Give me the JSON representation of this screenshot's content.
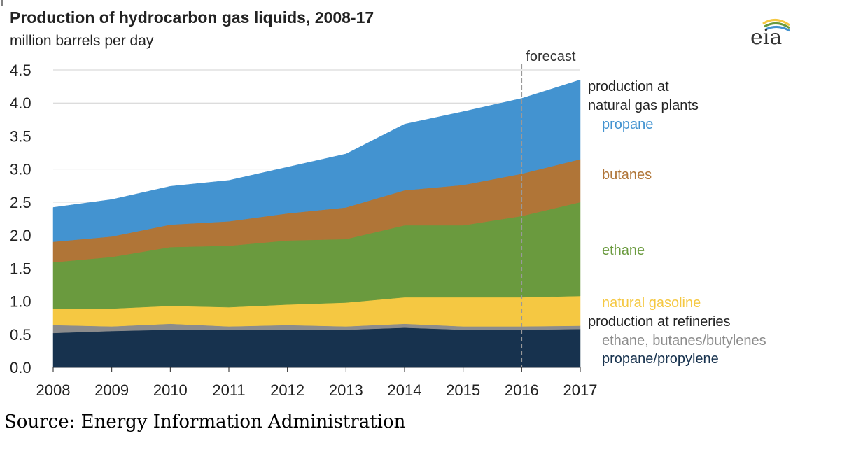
{
  "chart_data": {
    "type": "area",
    "title": "Production of hydrocarbon gas liquids, 2008-17",
    "ylabel": "million barrels per day",
    "x": [
      2008,
      2009,
      2010,
      2011,
      2012,
      2013,
      2014,
      2015,
      2016,
      2017
    ],
    "xticks": [
      "2008",
      "2009",
      "2010",
      "2011",
      "2012",
      "2013",
      "2014",
      "2015",
      "2016",
      "2017"
    ],
    "yticks": [
      "0.0",
      "0.5",
      "1.0",
      "1.5",
      "2.0",
      "2.5",
      "3.0",
      "3.5",
      "4.0",
      "4.5"
    ],
    "ylim": [
      0,
      4.5
    ],
    "forecast_start": 2016,
    "forecast_label": "forecast",
    "stacked": true,
    "series": [
      {
        "name": "propane/propylene",
        "group": "production at refineries",
        "color": "#17324e",
        "values": [
          0.52,
          0.55,
          0.57,
          0.57,
          0.57,
          0.57,
          0.6,
          0.57,
          0.57,
          0.58
        ]
      },
      {
        "name": "ethane, butanes/butylenes",
        "group": "production at refineries",
        "color": "#8c8c8c",
        "values": [
          0.12,
          0.07,
          0.09,
          0.05,
          0.07,
          0.05,
          0.06,
          0.05,
          0.05,
          0.05
        ]
      },
      {
        "name": "natural gasoline",
        "group": "production at natural gas plants",
        "color": "#f5c842",
        "values": [
          0.25,
          0.27,
          0.27,
          0.29,
          0.31,
          0.36,
          0.4,
          0.44,
          0.44,
          0.45
        ]
      },
      {
        "name": "ethane",
        "group": "production at natural gas plants",
        "color": "#6a9a3e",
        "values": [
          0.7,
          0.78,
          0.89,
          0.93,
          0.97,
          0.96,
          1.09,
          1.09,
          1.23,
          1.42
        ]
      },
      {
        "name": "butanes",
        "group": "production at natural gas plants",
        "color": "#b07537",
        "values": [
          0.31,
          0.31,
          0.34,
          0.37,
          0.41,
          0.48,
          0.53,
          0.61,
          0.64,
          0.65
        ]
      },
      {
        "name": "propane",
        "group": "production at natural gas plants",
        "color": "#4393d0",
        "values": [
          0.52,
          0.56,
          0.58,
          0.62,
          0.7,
          0.81,
          1.0,
          1.11,
          1.14,
          1.2
        ]
      }
    ]
  },
  "legend": {
    "header_plants": [
      "production at",
      "natural gas plants"
    ],
    "header_refineries": "production at refineries",
    "header_color": "#222222"
  },
  "logo": {
    "text": "eia"
  },
  "source": "Source: Energy Information Administration"
}
